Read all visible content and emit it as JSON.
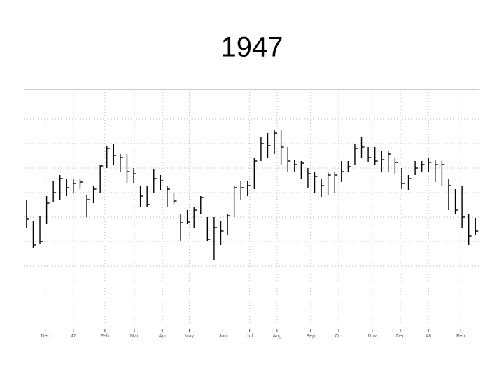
{
  "title": "1947",
  "chart_data": {
    "type": "hlc",
    "color": "#000000",
    "grid": true,
    "x": [
      0,
      1,
      2,
      3,
      4,
      5,
      6,
      7,
      8,
      9,
      10,
      11,
      12,
      13,
      14,
      15,
      16,
      17,
      18,
      19,
      20,
      21,
      22,
      23,
      24,
      25,
      26,
      27,
      28,
      29,
      30,
      31,
      32,
      33,
      34,
      35,
      36,
      37,
      38,
      39,
      40,
      41,
      42,
      43,
      44,
      45,
      46,
      47,
      48,
      49,
      50,
      51,
      52,
      53,
      54,
      55,
      56,
      57,
      58,
      59,
      60,
      61,
      62,
      63,
      64,
      65,
      66,
      67
    ],
    "high": [
      185,
      155,
      162,
      190,
      212,
      220,
      215,
      215,
      215,
      192,
      205,
      235,
      262,
      265,
      250,
      250,
      230,
      205,
      205,
      228,
      220,
      205,
      195,
      165,
      170,
      175,
      190,
      160,
      160,
      155,
      165,
      205,
      212,
      212,
      245,
      275,
      280,
      285,
      285,
      260,
      242,
      240,
      230,
      225,
      215,
      225,
      225,
      240,
      240,
      265,
      275,
      260,
      260,
      255,
      255,
      245,
      230,
      220,
      240,
      240,
      245,
      242,
      240,
      215,
      200,
      205,
      165,
      158
    ],
    "low": [
      145,
      115,
      122,
      150,
      182,
      185,
      190,
      195,
      200,
      160,
      180,
      195,
      230,
      235,
      225,
      208,
      208,
      175,
      175,
      195,
      198,
      175,
      178,
      125,
      150,
      145,
      165,
      125,
      98,
      120,
      135,
      160,
      185,
      190,
      200,
      240,
      245,
      250,
      235,
      225,
      225,
      215,
      202,
      195,
      188,
      192,
      195,
      210,
      225,
      235,
      245,
      238,
      235,
      225,
      225,
      222,
      200,
      198,
      220,
      225,
      225,
      210,
      205,
      170,
      165,
      145,
      120,
      135
    ],
    "close": [
      157,
      120,
      125,
      180,
      195,
      215,
      202,
      208,
      210,
      185,
      200,
      233,
      258,
      248,
      245,
      225,
      222,
      190,
      178,
      215,
      212,
      200,
      183,
      152,
      153,
      170,
      188,
      128,
      145,
      140,
      162,
      202,
      202,
      205,
      240,
      265,
      262,
      280,
      260,
      240,
      235,
      237,
      222,
      218,
      205,
      220,
      220,
      225,
      232,
      258,
      260,
      245,
      240,
      242,
      250,
      238,
      208,
      215,
      230,
      235,
      238,
      235,
      235,
      205,
      170,
      160,
      133,
      140
    ],
    "xlim": [
      -0.3,
      67.6
    ],
    "ylim": [
      0,
      342
    ],
    "xticks": [
      {
        "value": 2.8,
        "label": "Dec"
      },
      {
        "value": 7.0,
        "label": "47"
      },
      {
        "value": 11.7,
        "label": "Feb"
      },
      {
        "value": 16.1,
        "label": "Mar"
      },
      {
        "value": 20.3,
        "label": "Apr"
      },
      {
        "value": 24.3,
        "label": "May"
      },
      {
        "value": 29.3,
        "label": "Jun"
      },
      {
        "value": 33.3,
        "label": "Jul"
      },
      {
        "value": 37.4,
        "label": "Aug"
      },
      {
        "value": 42.4,
        "label": "Sep"
      },
      {
        "value": 46.6,
        "label": "Oct"
      },
      {
        "value": 51.6,
        "label": "Nov"
      },
      {
        "value": 55.8,
        "label": "Dec"
      },
      {
        "value": 60.0,
        "label": "48"
      },
      {
        "value": 64.8,
        "label": "Feb"
      }
    ]
  }
}
